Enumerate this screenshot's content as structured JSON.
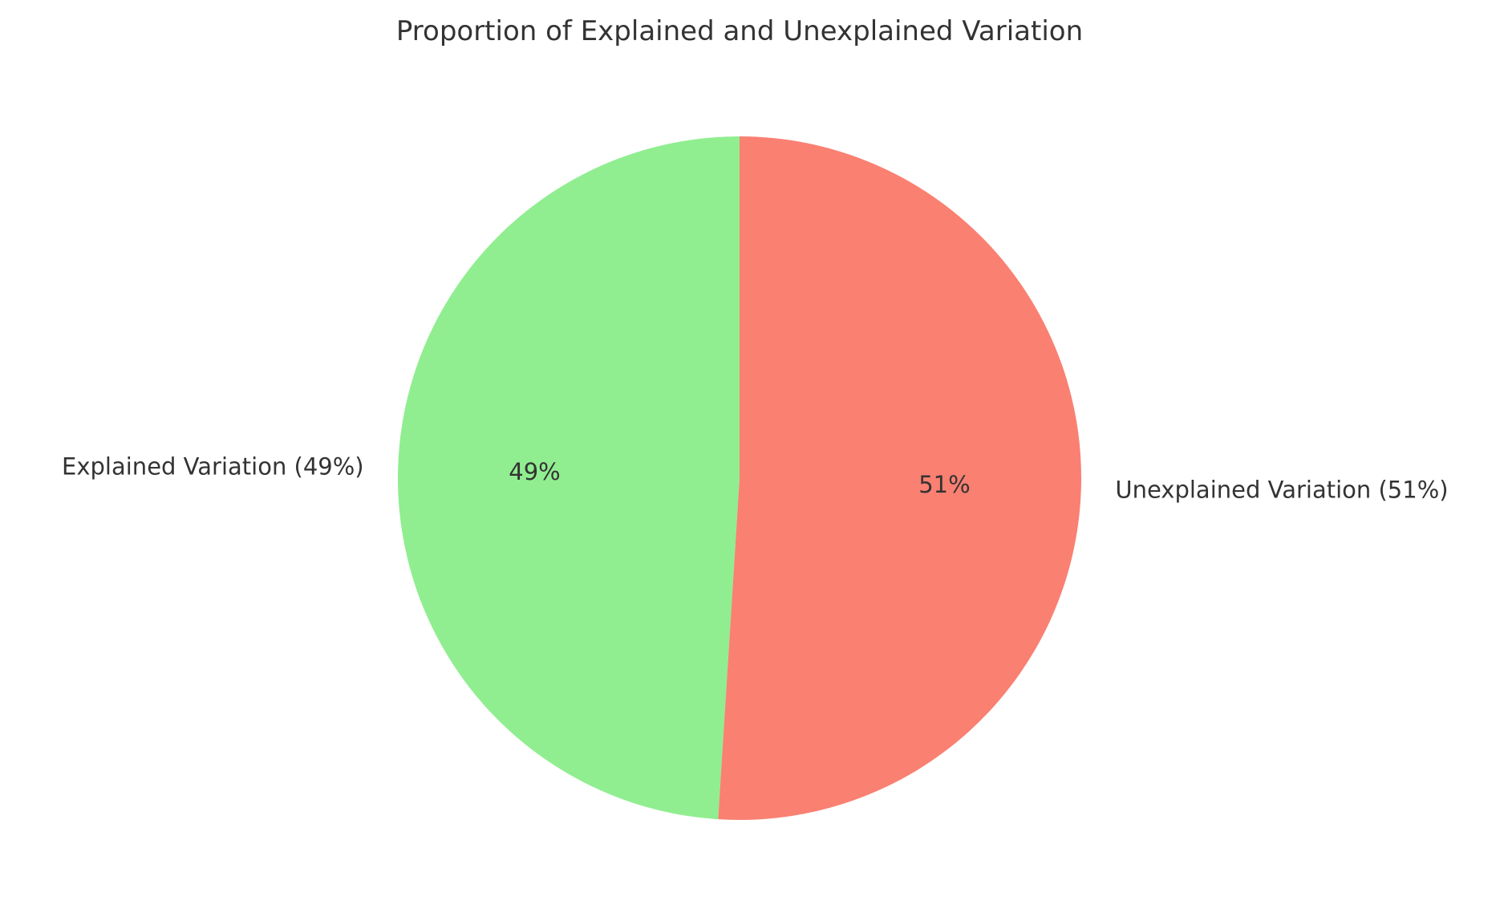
{
  "chart_data": {
    "type": "pie",
    "title": "Proportion of Explained and Unexplained Variation",
    "start_angle_deg": 90,
    "direction": "counterclockwise",
    "slices": [
      {
        "label": "Explained Variation (49%)",
        "value": 49,
        "pct_label": "49%",
        "color": "#90ee90"
      },
      {
        "label": "Unexplained Variation (51%)",
        "value": 51,
        "pct_label": "51%",
        "color": "#fa8072"
      }
    ]
  }
}
